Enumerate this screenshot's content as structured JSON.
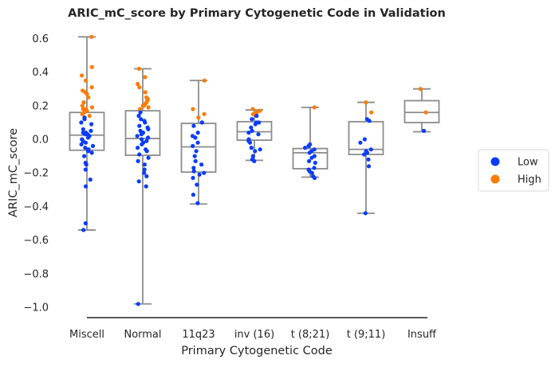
{
  "chart_data": {
    "type": "box+strip",
    "title": "ARIC_mC_score by Primary Cytogenetic Code in Validation",
    "xlabel": "Primary Cytogenetic Code",
    "ylabel": "ARIC_mC_score",
    "ylim": [
      -1.06,
      0.65
    ],
    "yticks": [
      0.6,
      0.4,
      0.2,
      0.0,
      -0.2,
      -0.4,
      -0.6,
      -0.8,
      -1.0
    ],
    "ytick_labels": [
      "0.6",
      "0.4",
      "0.2",
      "0.0",
      "−0.2",
      "−0.4",
      "−0.6",
      "−0.8",
      "−1.0"
    ],
    "categories": [
      "Miscell",
      "Normal",
      "11q23",
      "inv (16)",
      "t (8;21)",
      "t (9;11)",
      "Insuff"
    ],
    "grid": false,
    "legend": {
      "placement": "right",
      "entries": [
        {
          "label": "Low",
          "color": "#0a3cff"
        },
        {
          "label": "High",
          "color": "#ff7c00"
        }
      ]
    },
    "boxes": [
      {
        "category": "Miscell",
        "whisker_low": -0.54,
        "q1": -0.065,
        "median": 0.025,
        "q3": 0.16,
        "whisker_high": 0.61
      },
      {
        "category": "Normal",
        "whisker_low": -0.98,
        "q1": -0.095,
        "median": 0.005,
        "q3": 0.17,
        "whisker_high": 0.42
      },
      {
        "category": "11q23",
        "whisker_low": -0.385,
        "q1": -0.195,
        "median": -0.045,
        "q3": 0.095,
        "whisker_high": 0.35
      },
      {
        "category": "inv (16)",
        "whisker_low": -0.125,
        "q1": -0.005,
        "median": 0.045,
        "q3": 0.105,
        "whisker_high": 0.175
      },
      {
        "category": "t (8;21)",
        "whisker_low": -0.225,
        "q1": -0.175,
        "median": -0.08,
        "q3": -0.055,
        "whisker_high": 0.19
      },
      {
        "category": "t (9;11)",
        "whisker_low": -0.44,
        "q1": -0.09,
        "median": -0.06,
        "q3": 0.105,
        "whisker_high": 0.22
      },
      {
        "category": "Insuff",
        "whisker_low": 0.045,
        "q1": 0.1,
        "median": 0.16,
        "q3": 0.23,
        "whisker_high": 0.3
      }
    ],
    "points": [
      {
        "category": "Miscell",
        "group": "High",
        "values": [
          0.61,
          0.43,
          0.38,
          0.35,
          0.31,
          0.29,
          0.28,
          0.27,
          0.25,
          0.22,
          0.2,
          0.19,
          0.18,
          0.18,
          0.17,
          0.16,
          0.15,
          0.14
        ]
      },
      {
        "category": "Miscell",
        "group": "Low",
        "values": [
          0.13,
          0.12,
          0.1,
          0.09,
          0.06,
          0.05,
          0.04,
          0.04,
          0.03,
          0.03,
          0.02,
          0.01,
          0.0,
          -0.01,
          -0.02,
          -0.03,
          -0.04,
          -0.05,
          -0.06,
          -0.07,
          -0.08,
          -0.1,
          -0.14,
          -0.15,
          -0.18,
          -0.24,
          -0.28,
          -0.5,
          -0.54
        ]
      },
      {
        "category": "Normal",
        "group": "High",
        "values": [
          0.42,
          0.37,
          0.33,
          0.31,
          0.28,
          0.25,
          0.24,
          0.23,
          0.22,
          0.21,
          0.2,
          0.2,
          0.19,
          0.18
        ]
      },
      {
        "category": "Normal",
        "group": "Low",
        "values": [
          0.16,
          0.14,
          0.12,
          0.11,
          0.1,
          0.08,
          0.07,
          0.06,
          0.05,
          0.04,
          0.03,
          0.02,
          0.01,
          0.0,
          -0.01,
          -0.02,
          -0.03,
          -0.05,
          -0.06,
          -0.07,
          -0.09,
          -0.11,
          -0.13,
          -0.15,
          -0.18,
          -0.2,
          -0.22,
          -0.25,
          -0.28,
          -0.98
        ]
      },
      {
        "category": "11q23",
        "group": "High",
        "values": [
          0.35,
          0.18,
          0.15,
          0.13
        ]
      },
      {
        "category": "11q23",
        "group": "Low",
        "values": [
          0.1,
          0.1,
          0.08,
          0.04,
          0.02,
          0.01,
          -0.02,
          -0.04,
          -0.07,
          -0.1,
          -0.13,
          -0.15,
          -0.17,
          -0.19,
          -0.2,
          -0.21,
          -0.23,
          -0.27,
          -0.33,
          -0.38
        ]
      },
      {
        "category": "inv (16)",
        "group": "High",
        "values": [
          0.18,
          0.17,
          0.16,
          0.15
        ]
      },
      {
        "category": "inv (16)",
        "group": "Low",
        "values": [
          0.14,
          0.12,
          0.1,
          0.1,
          0.09,
          0.07,
          0.05,
          0.04,
          0.03,
          0.0,
          -0.01,
          -0.02,
          -0.05,
          -0.06,
          -0.07,
          -0.1,
          -0.12,
          -0.13
        ]
      },
      {
        "category": "t (8;21)",
        "group": "High",
        "values": [
          0.19
        ]
      },
      {
        "category": "t (8;21)",
        "group": "Low",
        "values": [
          -0.03,
          -0.04,
          -0.05,
          -0.06,
          -0.07,
          -0.08,
          -0.1,
          -0.11,
          -0.13,
          -0.14,
          -0.17,
          -0.18,
          -0.19,
          -0.2,
          -0.22,
          -0.23
        ]
      },
      {
        "category": "t (9;11)",
        "group": "High",
        "values": [
          0.22,
          0.16
        ]
      },
      {
        "category": "t (9;11)",
        "group": "Low",
        "values": [
          0.12,
          0.11,
          0.0,
          -0.02,
          -0.06,
          -0.07,
          -0.08,
          -0.09,
          -0.12,
          -0.16,
          -0.44
        ]
      },
      {
        "category": "Insuff",
        "group": "High",
        "values": [
          0.3,
          0.16
        ]
      },
      {
        "category": "Insuff",
        "group": "Low",
        "values": [
          0.05
        ]
      }
    ]
  }
}
